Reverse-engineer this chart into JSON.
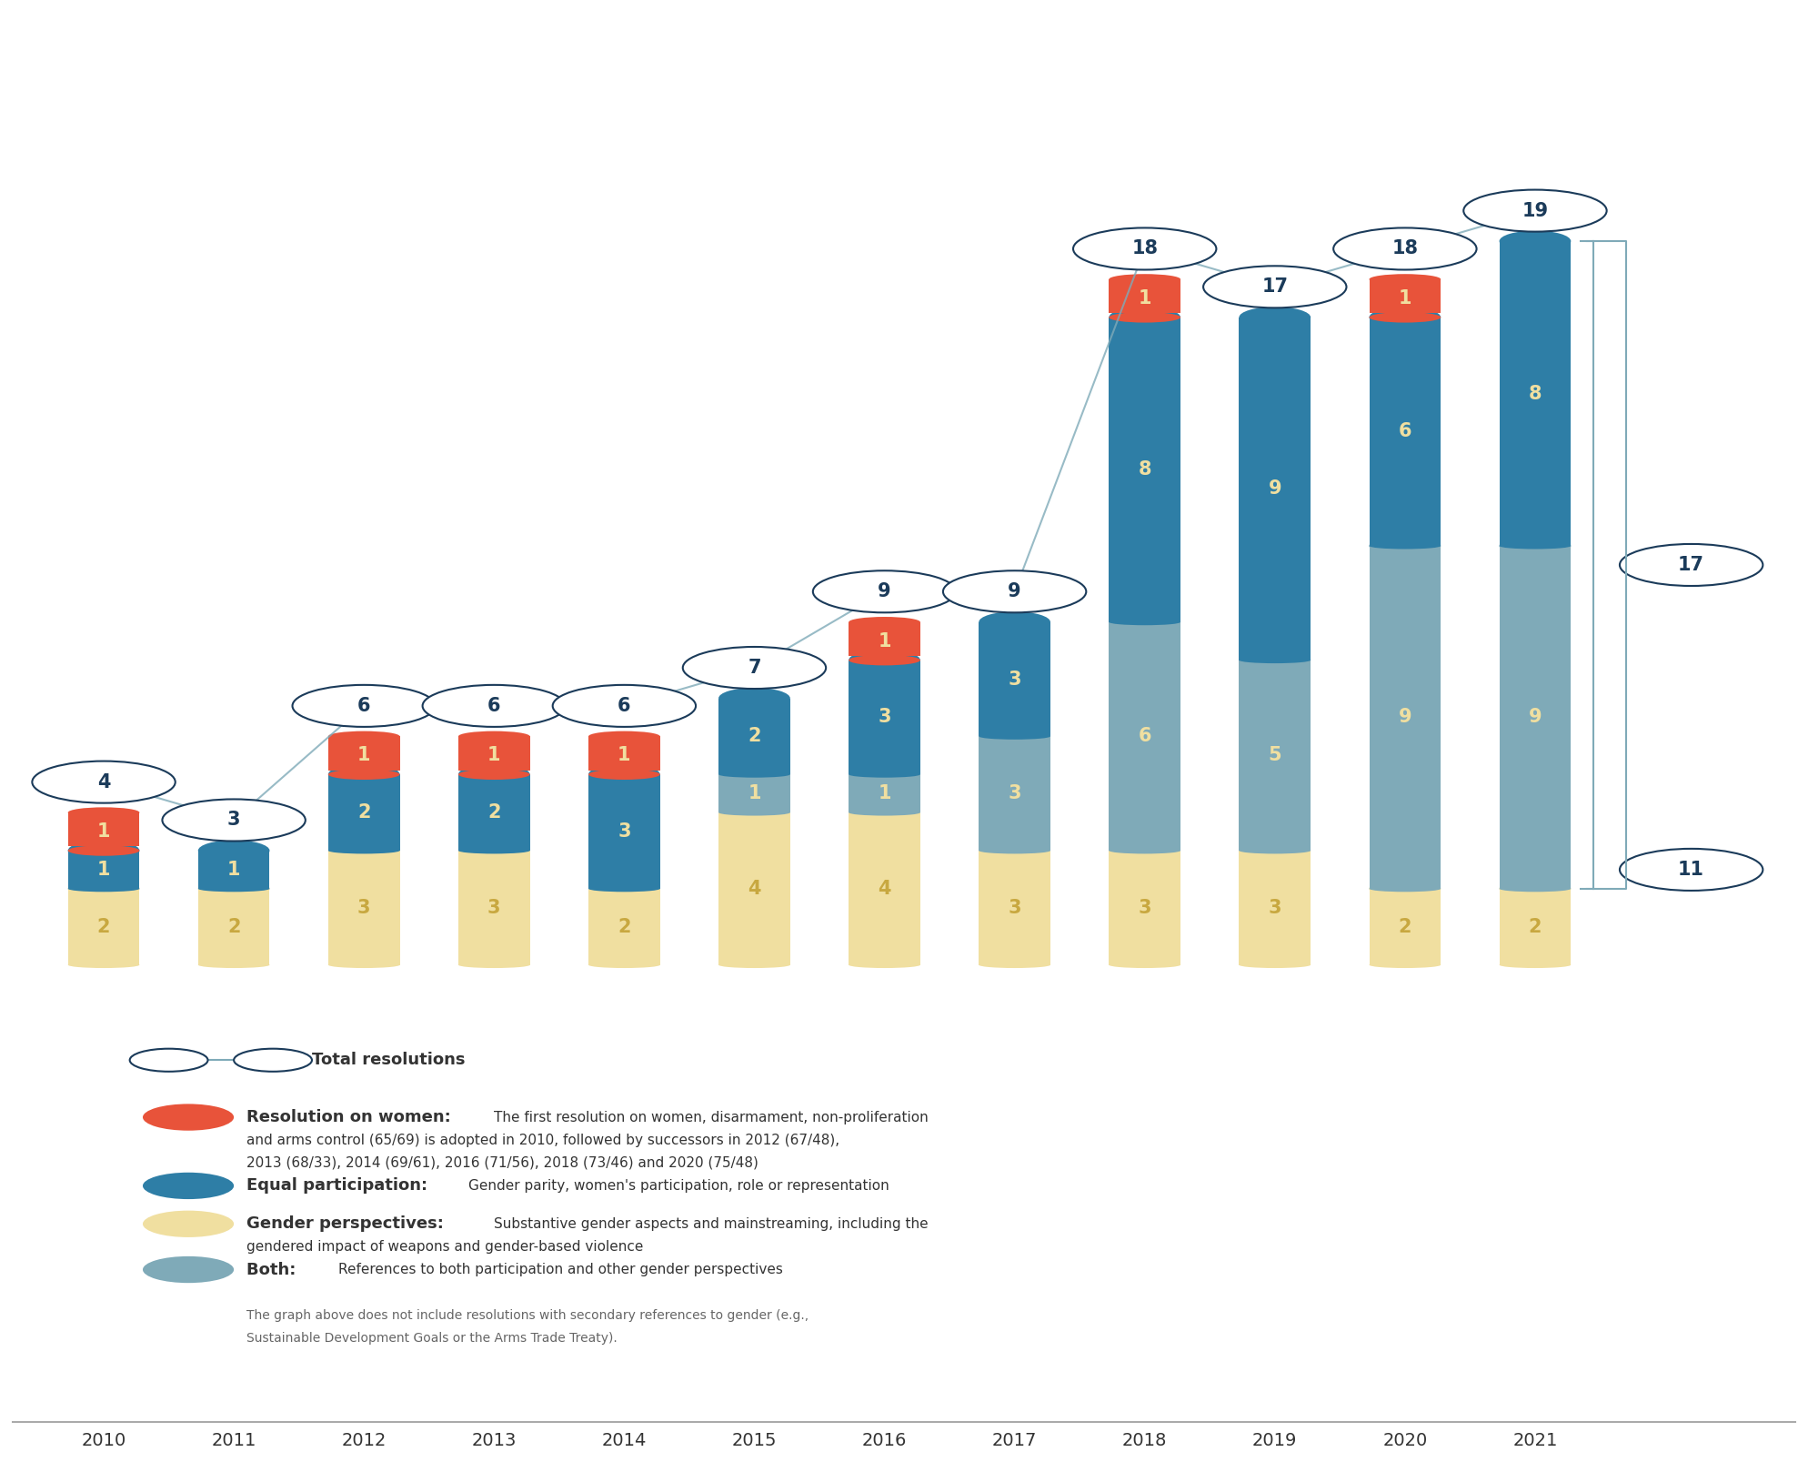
{
  "years": [
    2010,
    2011,
    2012,
    2013,
    2014,
    2015,
    2016,
    2017,
    2018,
    2019,
    2020,
    2021
  ],
  "women": [
    1,
    0,
    1,
    1,
    1,
    0,
    1,
    0,
    1,
    0,
    1,
    0
  ],
  "equal_participation": [
    1,
    1,
    2,
    2,
    3,
    2,
    3,
    3,
    8,
    9,
    6,
    8
  ],
  "gender_perspectives": [
    2,
    2,
    3,
    3,
    2,
    4,
    4,
    3,
    3,
    3,
    2,
    2
  ],
  "both": [
    0,
    0,
    0,
    0,
    0,
    1,
    1,
    3,
    6,
    5,
    9,
    9
  ],
  "totals": [
    4,
    3,
    6,
    6,
    6,
    7,
    9,
    9,
    18,
    17,
    18,
    19
  ],
  "bracket_total": 17,
  "bracket_label": 11,
  "color_women": "#E8533A",
  "color_equal": "#2E7EA6",
  "color_gender": "#F0DFA0",
  "color_both": "#7FAAB8",
  "color_total_circle_border": "#1B3B5A",
  "color_total_circle_line": "#7FAAB8",
  "bar_width": 0.55,
  "background_color": "#FFFFFF"
}
